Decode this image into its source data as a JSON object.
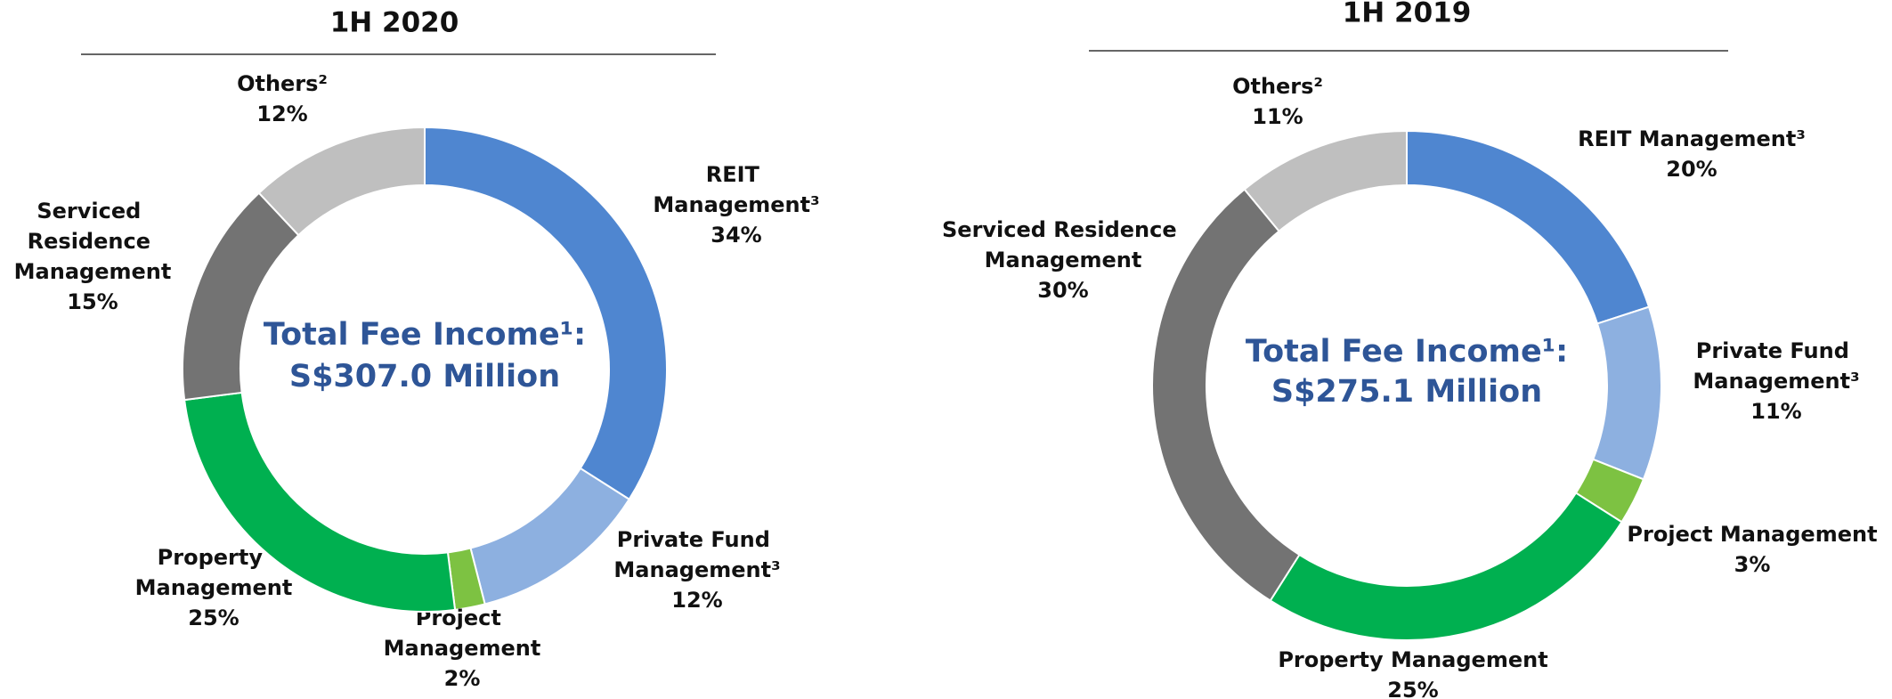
{
  "chart_data": [
    {
      "type": "pie",
      "donut": true,
      "title": "1H 2020",
      "categories": [
        "REIT Management³",
        "Private Fund Management³",
        "Project Management",
        "Property Management",
        "Serviced Residence Management",
        "Others²"
      ],
      "values": [
        34,
        12,
        2,
        25,
        15,
        12
      ],
      "value_labels": [
        "34%",
        "12%",
        "2%",
        "25%",
        "15%",
        "12%"
      ],
      "colors": [
        "#4f86d0",
        "#8db0e0",
        "#7dc242",
        "#00b050",
        "#737373",
        "#bfbfbf"
      ],
      "center_text": [
        "Total Fee Income¹:",
        "S$307.0 Million"
      ]
    },
    {
      "type": "pie",
      "donut": true,
      "title": "1H 2019",
      "categories": [
        "REIT Management³",
        "Private Fund Management³",
        "Project Management",
        "Property Management",
        "Serviced Residence Management",
        "Others²"
      ],
      "values": [
        20,
        11,
        3,
        25,
        30,
        11
      ],
      "value_labels": [
        "20%",
        "11%",
        "3%",
        "25%",
        "30%",
        "11%"
      ],
      "colors": [
        "#4f86d0",
        "#8db0e0",
        "#7dc242",
        "#00b050",
        "#737373",
        "#bfbfbf"
      ],
      "center_text": [
        "Total Fee Income¹:",
        "S$275.1 Million"
      ]
    }
  ]
}
